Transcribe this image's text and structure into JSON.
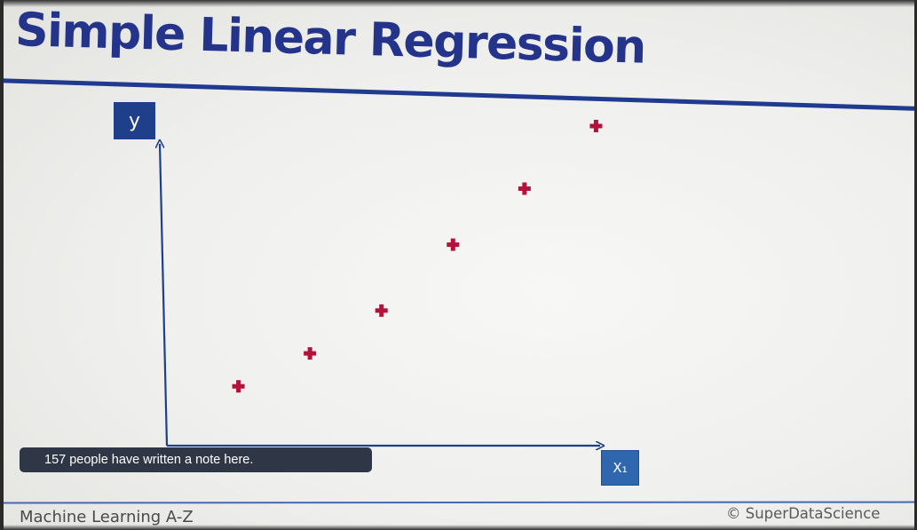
{
  "slide": {
    "title": "Simple Linear Regression",
    "footer_left": "Machine Learning A-Z",
    "footer_right": "© SuperDataScience"
  },
  "note_banner": {
    "text": "157 people have written a note here."
  },
  "axes": {
    "y_label": "y",
    "x_label": "X₁"
  },
  "colors": {
    "title": "#24348a",
    "axis": "#1f3f8a",
    "marker": "#b5123b",
    "banner": "#2f3747"
  },
  "chart_data": {
    "type": "scatter",
    "title": "",
    "xlabel": "X₁",
    "ylabel": "y",
    "points": [
      {
        "x": 1,
        "y": 1.0
      },
      {
        "x": 2,
        "y": 2.0
      },
      {
        "x": 3,
        "y": 3.3
      },
      {
        "x": 4,
        "y": 5.3
      },
      {
        "x": 5,
        "y": 7.0
      },
      {
        "x": 6,
        "y": 8.9
      }
    ],
    "xlim": [
      0,
      7
    ],
    "ylim": [
      -0.8,
      9.6
    ],
    "grid": false,
    "marker": "plus-cross",
    "legend": "none"
  }
}
